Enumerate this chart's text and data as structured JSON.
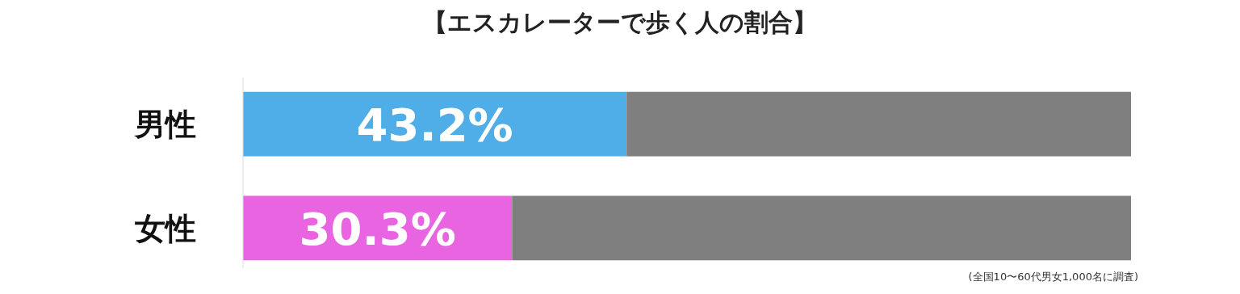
{
  "chart_data": {
    "type": "bar",
    "orientation": "horizontal",
    "stacked": true,
    "title": "【エスカレーターで歩く人の割合】",
    "categories": [
      "男性",
      "女性"
    ],
    "series": [
      {
        "colors": [
          "#4fade8",
          "#e964e0"
        ],
        "values": [
          43.2,
          30.3
        ],
        "value_labels": [
          "43.2%",
          "30.3%"
        ]
      },
      {
        "color": "#7f7f7f",
        "values": [
          56.8,
          69.7
        ]
      }
    ],
    "xlim": [
      0,
      100
    ],
    "tick_labels": "y",
    "annotations": [
      "(全国10〜60代男女1,000名に調査)"
    ]
  }
}
